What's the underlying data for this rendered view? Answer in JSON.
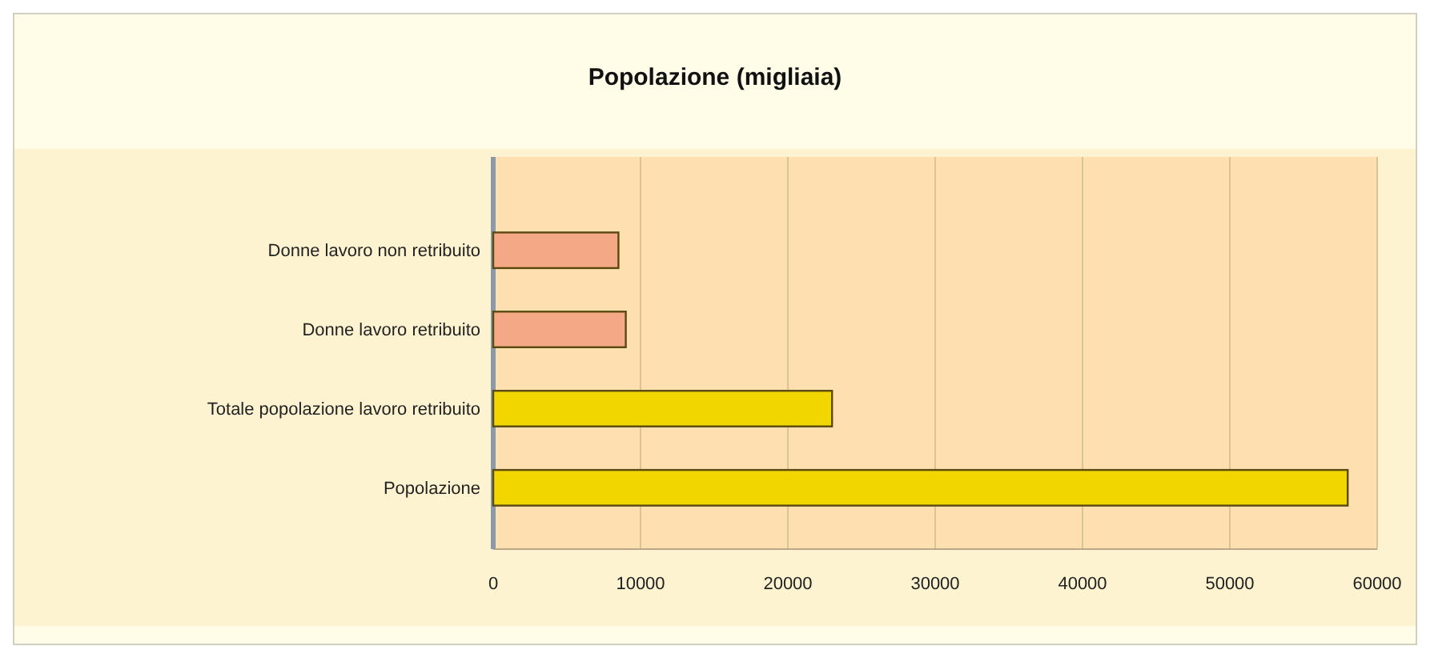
{
  "chart_data": {
    "type": "bar",
    "orientation": "horizontal",
    "title": "Popolazione (migliaia)",
    "categories": [
      "Donne lavoro non retribuito",
      "Donne lavoro retribuito",
      "Totale popolazione lavoro retribuito",
      "Popolazione"
    ],
    "values": [
      8500,
      9000,
      23000,
      58000
    ],
    "colors": [
      "#f4a885",
      "#f4a885",
      "#f2d600",
      "#f2d600"
    ],
    "xlim": [
      0,
      60000
    ],
    "xticks": [
      0,
      10000,
      20000,
      30000,
      40000,
      50000,
      60000
    ],
    "grid": "x"
  }
}
